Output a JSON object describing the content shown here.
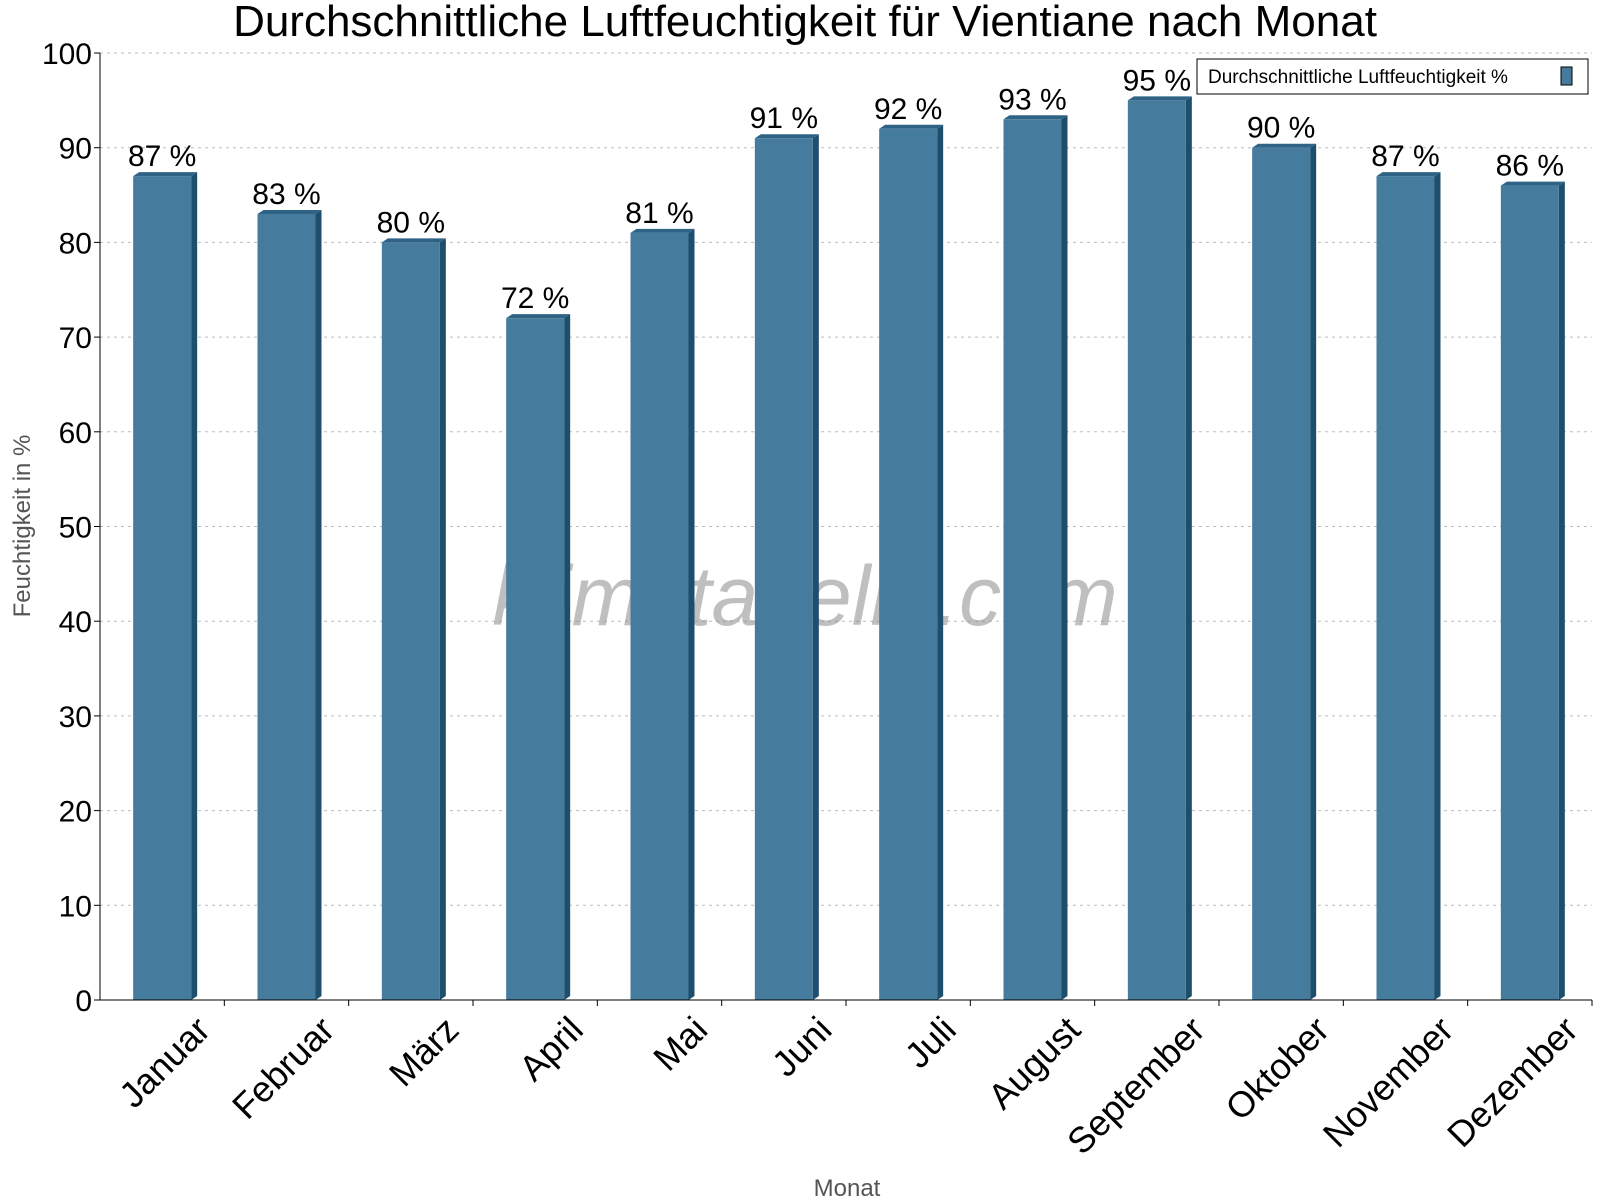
{
  "watermark": "klimatabelle.com",
  "legend": {
    "label": "Durchschnittliche Luftfeuchtigkeit %",
    "position": "top-right"
  },
  "colors": {
    "bar_face": "#457b9d",
    "bar_side": "#1d4e6b",
    "bar_top": "#2f6385",
    "grid": "#bbbbbb"
  },
  "chart_data": {
    "type": "bar",
    "title": "Durchschnittliche Luftfeuchtigkeit für Vientiane nach Monat",
    "xlabel": "Monat",
    "ylabel": "Feuchtigkeit in %",
    "ylim": [
      0,
      100
    ],
    "yticks": [
      "0",
      "10",
      "20",
      "30",
      "40",
      "50",
      "60",
      "70",
      "80",
      "90",
      "100"
    ],
    "grid": true,
    "categories": [
      "Januar",
      "Februar",
      "März",
      "April",
      "Mai",
      "Juni",
      "Juli",
      "August",
      "September",
      "Oktober",
      "November",
      "Dezember"
    ],
    "values": [
      87,
      83,
      80,
      72,
      81,
      91,
      92,
      93,
      95,
      90,
      87,
      86
    ],
    "value_labels": [
      "87 %",
      "83 %",
      "80 %",
      "72 %",
      "81 %",
      "91 %",
      "92 %",
      "93 %",
      "95 %",
      "90 %",
      "87 %",
      "86 %"
    ]
  }
}
